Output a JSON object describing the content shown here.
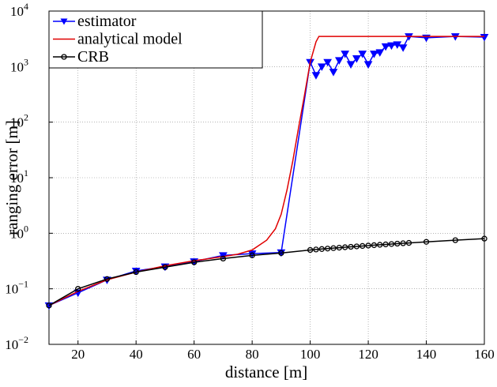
{
  "chart_data": {
    "type": "line",
    "x_label": "distance [m]",
    "y_label": "ranging error [m]",
    "xlim": [
      10,
      160
    ],
    "xticks": [
      20,
      40,
      60,
      80,
      100,
      120,
      140,
      160
    ],
    "ylim": [
      0.01,
      10000
    ],
    "yticks": [
      {
        "value": 0.01,
        "label": "10",
        "exponent": "−2"
      },
      {
        "value": 0.1,
        "label": "10",
        "exponent": "−1"
      },
      {
        "value": 1,
        "label": "10",
        "exponent": "0"
      },
      {
        "value": 10,
        "label": "10",
        "exponent": "1"
      },
      {
        "value": 100,
        "label": "10",
        "exponent": "2"
      },
      {
        "value": 1000,
        "label": "10",
        "exponent": "3"
      },
      {
        "value": 10000,
        "label": "10",
        "exponent": "4"
      }
    ],
    "log_y": true,
    "grid": true,
    "legend": "top-left",
    "series": [
      {
        "name": "estimator",
        "color": "#0000ff",
        "marker": "triangle-down",
        "x": [
          10,
          20,
          30,
          40,
          50,
          60,
          70,
          80,
          90,
          100,
          102,
          104,
          106,
          108,
          110,
          112,
          114,
          116,
          118,
          120,
          122,
          124,
          126,
          128,
          130,
          132,
          134,
          140,
          150,
          160
        ],
        "values": [
          0.05,
          0.085,
          0.145,
          0.21,
          0.25,
          0.31,
          0.4,
          0.43,
          0.45,
          1200,
          700,
          1000,
          1200,
          800,
          1300,
          1700,
          1100,
          1400,
          1700,
          1100,
          1700,
          1800,
          2300,
          2400,
          2500,
          2200,
          3500,
          3300,
          3500,
          3400
        ]
      },
      {
        "name": "analytical model",
        "color": "#e00000",
        "marker": "none",
        "x": [
          10,
          20,
          30,
          40,
          50,
          60,
          70,
          75,
          80,
          85,
          88,
          90,
          92,
          94,
          96,
          98,
          100,
          102,
          103,
          110,
          160
        ],
        "values": [
          0.05,
          0.09,
          0.145,
          0.2,
          0.26,
          0.32,
          0.38,
          0.42,
          0.5,
          0.75,
          1.2,
          2.2,
          6,
          20,
          80,
          300,
          1200,
          2800,
          3500,
          3500,
          3500
        ]
      },
      {
        "name": "CRB",
        "color": "#000000",
        "marker": "circle",
        "x": [
          10,
          20,
          30,
          40,
          50,
          60,
          70,
          80,
          90,
          100,
          102,
          104,
          106,
          108,
          110,
          112,
          114,
          116,
          118,
          120,
          122,
          124,
          126,
          128,
          130,
          132,
          134,
          140,
          150,
          160
        ],
        "values": [
          0.05,
          0.1,
          0.15,
          0.2,
          0.245,
          0.3,
          0.35,
          0.4,
          0.44,
          0.5,
          0.51,
          0.52,
          0.53,
          0.54,
          0.55,
          0.56,
          0.57,
          0.58,
          0.59,
          0.6,
          0.61,
          0.62,
          0.63,
          0.64,
          0.65,
          0.66,
          0.67,
          0.7,
          0.75,
          0.8
        ]
      }
    ]
  }
}
